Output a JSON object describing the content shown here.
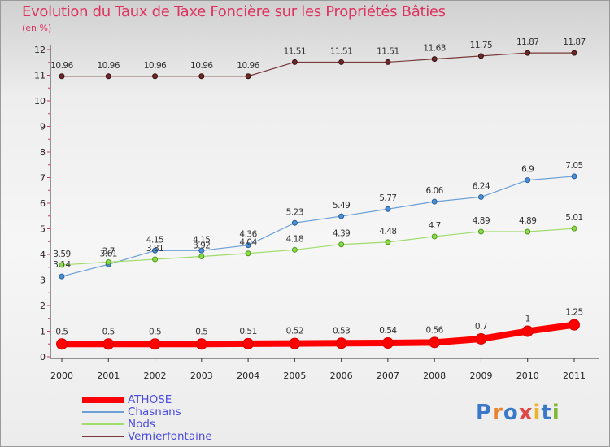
{
  "title": "Evolution du Taux de Taxe Foncière sur les Propriétés Bâties",
  "subtitle": "(en %)",
  "logo": {
    "text": "Proxiti",
    "colors": [
      "#3a78c8",
      "#e8832a",
      "#3a78c8",
      "#e04848",
      "#e8b42a",
      "#3a78c8",
      "#80b838"
    ]
  },
  "chart_data": {
    "type": "line",
    "title": "Evolution du Taux de Taxe Foncière sur les Propriétés Bâties",
    "ylabel": "(en %)",
    "xlabel": "",
    "x": [
      "2000",
      "2001",
      "2002",
      "2003",
      "2004",
      "2005",
      "2006",
      "2007",
      "2008",
      "2009",
      "2010",
      "2011"
    ],
    "ylim": [
      0,
      12
    ],
    "yticks": [
      "0",
      "1",
      "2",
      "3",
      "4",
      "5",
      "6",
      "7",
      "8",
      "9",
      "10",
      "11",
      "12"
    ],
    "grid": false,
    "legend_position": "bottom-left",
    "series": [
      {
        "name": "ATHOSE",
        "color": "#ff0000",
        "values": [
          0.5,
          0.5,
          0.5,
          0.5,
          0.51,
          0.52,
          0.53,
          0.54,
          0.56,
          0.7,
          1,
          1.25
        ],
        "labels": [
          "0.5",
          "0.5",
          "0.5",
          "0.5",
          "0.51",
          "0.52",
          "0.53",
          "0.54",
          "0.56",
          "0.7",
          "1",
          "1.25"
        ]
      },
      {
        "name": "Chasnans",
        "color": "#6a9fd8",
        "values": [
          3.14,
          3.61,
          4.15,
          4.15,
          4.36,
          5.23,
          5.49,
          5.77,
          6.06,
          6.24,
          6.9,
          7.05
        ],
        "labels": [
          "3.14",
          "3.61",
          "4.15",
          "4.15",
          "4.36",
          "5.23",
          "5.49",
          "5.77",
          "6.06",
          "6.24",
          "6.9",
          "7.05"
        ]
      },
      {
        "name": "Nods",
        "color": "#9fdc6a",
        "values": [
          3.59,
          3.7,
          3.81,
          3.92,
          4.04,
          4.18,
          4.39,
          4.48,
          4.7,
          4.89,
          4.89,
          5.01
        ],
        "labels": [
          "3.59",
          "3.7",
          "3.81",
          "3.92",
          "4.04",
          "4.18",
          "4.39",
          "4.48",
          "4.7",
          "4.89",
          "4.89",
          "5.01"
        ]
      },
      {
        "name": "Vernierfontaine",
        "color": "#7a3a3a",
        "values": [
          10.96,
          10.96,
          10.96,
          10.96,
          10.96,
          11.51,
          11.51,
          11.51,
          11.63,
          11.75,
          11.87,
          11.87
        ],
        "labels": [
          "10.96",
          "10.96",
          "10.96",
          "10.96",
          "10.96",
          "11.51",
          "11.51",
          "11.51",
          "11.63",
          "11.75",
          "11.87",
          "11.87"
        ]
      }
    ]
  }
}
